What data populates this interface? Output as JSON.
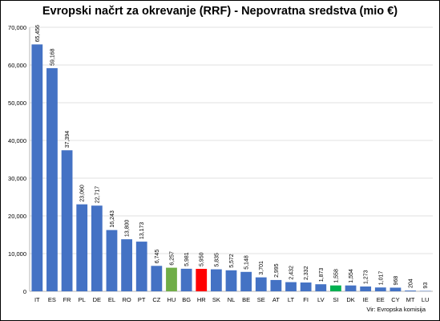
{
  "chart_data": {
    "type": "bar",
    "title": "Evropski načrt za okrevanje (RRF) - Nepovratna sredstva (mio €)",
    "source": "Vir: Evropska komisija",
    "xlabel": "",
    "ylabel": "",
    "ylim": [
      0,
      70000
    ],
    "yticks": [
      0,
      10000,
      20000,
      30000,
      40000,
      50000,
      60000,
      70000
    ],
    "ytick_labels": [
      "0",
      "10,000",
      "20,000",
      "30,000",
      "40,000",
      "50,000",
      "60,000",
      "70,000"
    ],
    "grid": true,
    "legend": "none",
    "categories": [
      "IT",
      "ES",
      "FR",
      "PL",
      "DE",
      "EL",
      "RO",
      "PT",
      "CZ",
      "HU",
      "BG",
      "HR",
      "SK",
      "NL",
      "BE",
      "SE",
      "AT",
      "LT",
      "FI",
      "LV",
      "SI",
      "DK",
      "IE",
      "EE",
      "CY",
      "MT",
      "LU"
    ],
    "values": [
      65456,
      59168,
      37394,
      23060,
      22717,
      16243,
      13800,
      13173,
      6745,
      6257,
      5981,
      5950,
      5835,
      5572,
      5148,
      3701,
      2995,
      2432,
      2332,
      1873,
      1558,
      1554,
      1273,
      1017,
      968,
      204,
      93
    ],
    "value_labels": [
      "65,456",
      "59,168",
      "37,394",
      "23,060",
      "22,717",
      "16,243",
      "13,800",
      "13,173",
      "6,745",
      "6,257",
      "5,981",
      "5,950",
      "5,835",
      "5,572",
      "5,148",
      "3,701",
      "2,995",
      "2,432",
      "2,332",
      "1,873",
      "1,558",
      "1,554",
      "1,273",
      "1,017",
      "968",
      "204",
      "93"
    ],
    "colors": {
      "default": "#4472c4",
      "HU": "#70ad47",
      "HR": "#ff0000",
      "SI": "#00b050"
    }
  }
}
